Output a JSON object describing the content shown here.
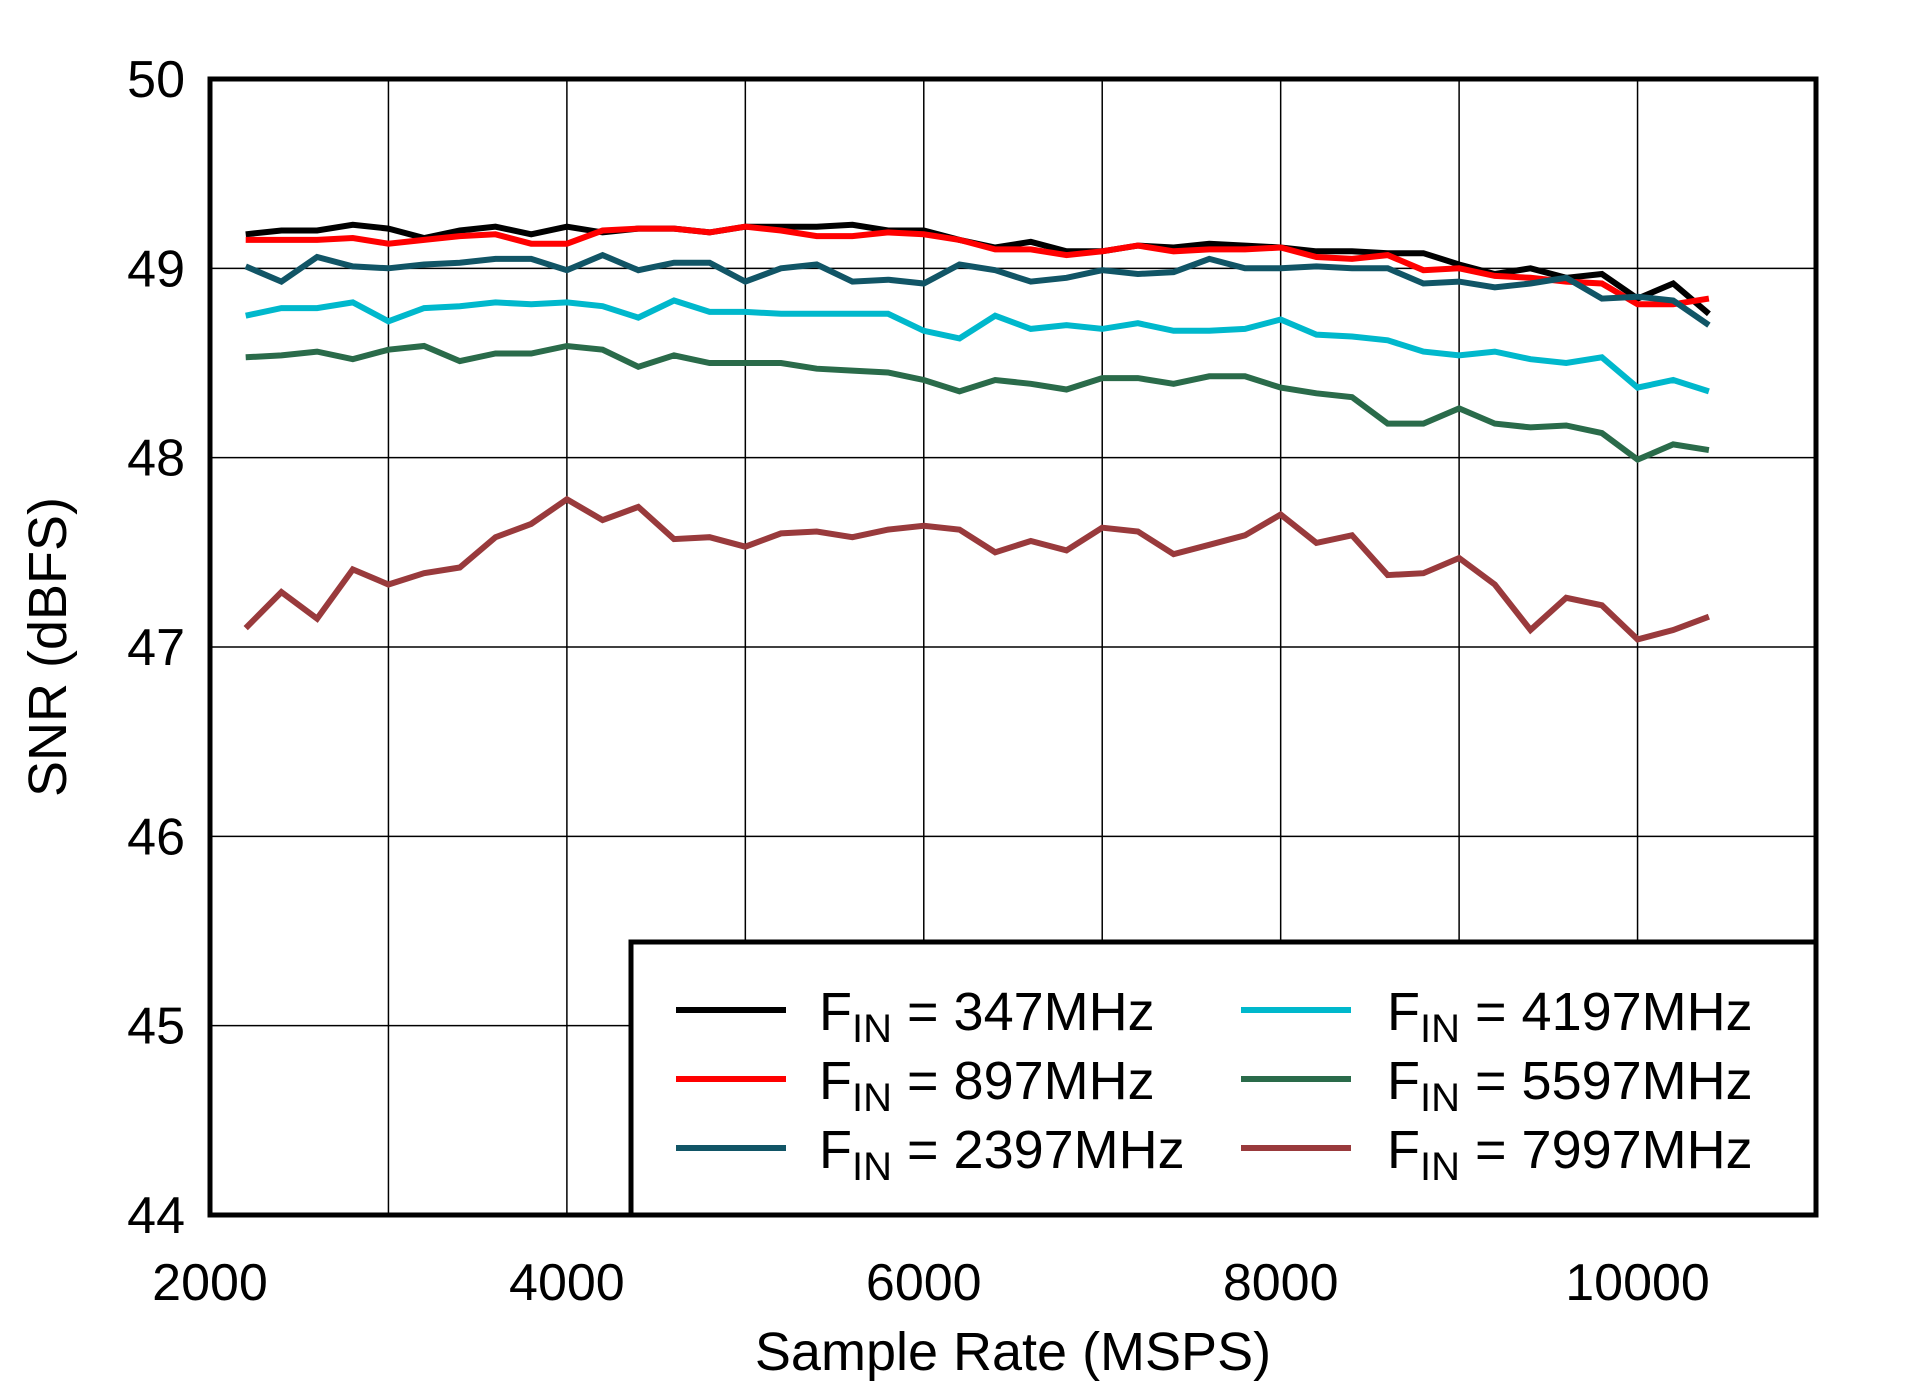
{
  "chart_data": {
    "type": "line",
    "title": "",
    "xlabel": "Sample Rate  (MSPS)",
    "ylabel": "SNR  (dBFS)",
    "xlim": [
      2000,
      11000
    ],
    "ylim": [
      44,
      50
    ],
    "xticks": [
      2000,
      4000,
      6000,
      8000,
      10000
    ],
    "yticks": [
      44,
      45,
      46,
      47,
      48,
      49,
      50
    ],
    "grid": true,
    "legend_placement": "bottom-right",
    "x": [
      2200,
      2400,
      2600,
      2800,
      3000,
      3200,
      3400,
      3600,
      3800,
      4000,
      4200,
      4400,
      4600,
      4800,
      5000,
      5200,
      5400,
      5600,
      5800,
      6000,
      6200,
      6400,
      6600,
      6800,
      7000,
      7200,
      7400,
      7600,
      7800,
      8000,
      8200,
      8400,
      8600,
      8800,
      9000,
      9200,
      9400,
      9600,
      9800,
      10000,
      10200,
      10400
    ],
    "series": [
      {
        "name": "FIN = 347MHz",
        "color": "#000000",
        "values": [
          49.18,
          49.2,
          49.2,
          49.23,
          49.21,
          49.16,
          49.2,
          49.22,
          49.18,
          49.22,
          49.19,
          49.21,
          49.21,
          49.19,
          49.22,
          49.22,
          49.22,
          49.23,
          49.2,
          49.2,
          49.15,
          49.11,
          49.14,
          49.09,
          49.09,
          49.12,
          49.11,
          49.13,
          49.12,
          49.11,
          49.09,
          49.09,
          49.08,
          49.08,
          49.02,
          48.97,
          49.0,
          48.95,
          48.97,
          48.84,
          48.92,
          48.76
        ]
      },
      {
        "name": "FIN = 897MHz",
        "color": "#ff0000",
        "values": [
          49.15,
          49.15,
          49.15,
          49.16,
          49.13,
          49.15,
          49.17,
          49.18,
          49.13,
          49.13,
          49.2,
          49.21,
          49.21,
          49.19,
          49.22,
          49.2,
          49.17,
          49.17,
          49.19,
          49.18,
          49.15,
          49.1,
          49.1,
          49.07,
          49.09,
          49.12,
          49.09,
          49.1,
          49.1,
          49.11,
          49.06,
          49.05,
          49.07,
          48.99,
          49.0,
          48.96,
          48.95,
          48.93,
          48.92,
          48.81,
          48.81,
          48.84
        ]
      },
      {
        "name": "FIN = 2397MHz",
        "color": "#115566",
        "values": [
          49.01,
          48.93,
          49.06,
          49.01,
          49.0,
          49.02,
          49.03,
          49.05,
          49.05,
          48.99,
          49.07,
          48.99,
          49.03,
          49.03,
          48.93,
          49.0,
          49.02,
          48.93,
          48.94,
          48.92,
          49.02,
          48.99,
          48.93,
          48.95,
          48.99,
          48.97,
          48.98,
          49.05,
          49.0,
          49.0,
          49.01,
          49.0,
          49.0,
          48.92,
          48.93,
          48.9,
          48.92,
          48.95,
          48.84,
          48.85,
          48.83,
          48.7
        ]
      },
      {
        "name": "FIN = 4197MHz",
        "color": "#00b8cc",
        "values": [
          48.75,
          48.79,
          48.79,
          48.82,
          48.72,
          48.79,
          48.8,
          48.82,
          48.81,
          48.82,
          48.8,
          48.74,
          48.83,
          48.77,
          48.77,
          48.76,
          48.76,
          48.76,
          48.76,
          48.67,
          48.63,
          48.75,
          48.68,
          48.7,
          48.68,
          48.71,
          48.67,
          48.67,
          48.68,
          48.73,
          48.65,
          48.64,
          48.62,
          48.56,
          48.54,
          48.56,
          48.52,
          48.5,
          48.53,
          48.37,
          48.41,
          48.35
        ]
      },
      {
        "name": "FIN = 5597MHz",
        "color": "#2a6b4a",
        "values": [
          48.53,
          48.54,
          48.56,
          48.52,
          48.57,
          48.59,
          48.51,
          48.55,
          48.55,
          48.59,
          48.57,
          48.48,
          48.54,
          48.5,
          48.5,
          48.5,
          48.47,
          48.46,
          48.45,
          48.41,
          48.35,
          48.41,
          48.39,
          48.36,
          48.42,
          48.42,
          48.39,
          48.43,
          48.43,
          48.37,
          48.34,
          48.32,
          48.18,
          48.18,
          48.26,
          48.18,
          48.16,
          48.17,
          48.13,
          47.99,
          48.07,
          48.04
        ]
      },
      {
        "name": "FIN = 7997MHz",
        "color": "#993a3c",
        "values": [
          47.1,
          47.29,
          47.15,
          47.41,
          47.33,
          47.39,
          47.42,
          47.58,
          47.65,
          47.78,
          47.67,
          47.74,
          47.57,
          47.58,
          47.53,
          47.6,
          47.61,
          47.58,
          47.62,
          47.64,
          47.62,
          47.5,
          47.56,
          47.51,
          47.63,
          47.61,
          47.49,
          47.54,
          47.59,
          47.7,
          47.55,
          47.59,
          47.38,
          47.39,
          47.47,
          47.33,
          47.09,
          47.26,
          47.22,
          47.04,
          47.09,
          47.16
        ]
      }
    ]
  }
}
